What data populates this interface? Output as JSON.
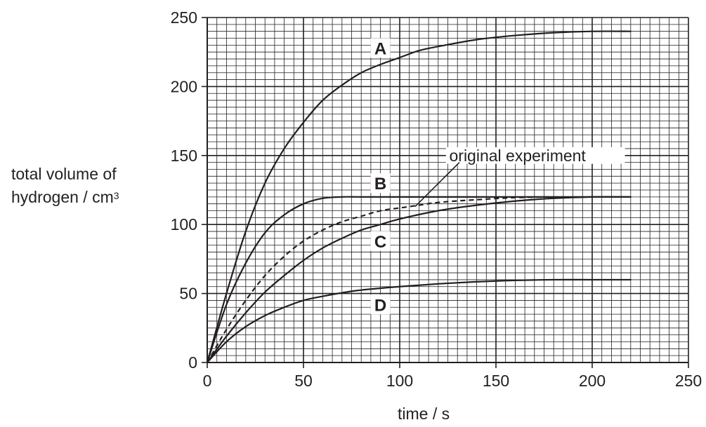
{
  "chart_data": {
    "type": "line",
    "xlabel": "time / s",
    "ylabel_line1": "total volume of",
    "ylabel_line2": "hydrogen / cm",
    "ylabel_sup": "3",
    "xlim": [
      0,
      250
    ],
    "ylim": [
      0,
      250
    ],
    "x_ticks": [
      0,
      50,
      100,
      150,
      200,
      250
    ],
    "y_ticks": [
      0,
      50,
      100,
      150,
      200,
      250
    ],
    "grid": true,
    "annotation": "original experiment",
    "series": [
      {
        "name": "A",
        "style": "solid",
        "x": [
          0,
          10,
          20,
          30,
          40,
          50,
          60,
          70,
          80,
          90,
          100,
          110,
          120,
          140,
          160,
          180,
          200,
          220
        ],
        "y": [
          0,
          50,
          95,
          130,
          155,
          174,
          190,
          201,
          210,
          216,
          221,
          226,
          229,
          234,
          237,
          239,
          240,
          240
        ]
      },
      {
        "name": "B",
        "style": "solid",
        "x": [
          0,
          10,
          20,
          30,
          40,
          50,
          60,
          70,
          80,
          100,
          150,
          220
        ],
        "y": [
          0,
          42,
          72,
          94,
          107,
          115,
          119,
          120,
          120,
          120,
          120,
          120
        ]
      },
      {
        "name": "original experiment",
        "style": "dashed",
        "x": [
          0,
          10,
          20,
          30,
          40,
          50,
          60,
          70,
          80,
          90,
          100,
          110,
          120,
          140,
          160,
          180
        ],
        "y": [
          0,
          24,
          45,
          63,
          77,
          88,
          96,
          102,
          106,
          110,
          112,
          114,
          116,
          118,
          119.5,
          120
        ]
      },
      {
        "name": "C",
        "style": "solid",
        "x": [
          0,
          10,
          20,
          30,
          40,
          50,
          60,
          70,
          80,
          90,
          100,
          120,
          140,
          160,
          180,
          200,
          220
        ],
        "y": [
          0,
          19,
          36,
          51,
          63,
          74,
          83,
          90,
          96,
          100,
          104,
          110,
          114,
          117,
          119,
          120,
          120
        ]
      },
      {
        "name": "D",
        "style": "solid",
        "x": [
          0,
          10,
          20,
          30,
          40,
          50,
          60,
          70,
          80,
          100,
          120,
          140,
          160,
          180,
          200,
          220
        ],
        "y": [
          0,
          15,
          26,
          34,
          40,
          45,
          48,
          50.5,
          52.5,
          55,
          57,
          58.5,
          59.5,
          60,
          60,
          60
        ]
      }
    ],
    "labels": [
      {
        "text": "A",
        "x": 90,
        "y": 228
      },
      {
        "text": "B",
        "x": 90,
        "y": 130
      },
      {
        "text": "C",
        "x": 90,
        "y": 88
      },
      {
        "text": "D",
        "x": 90,
        "y": 42
      }
    ]
  }
}
